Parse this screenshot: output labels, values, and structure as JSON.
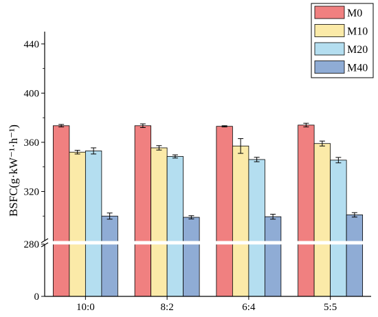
{
  "chart_data": {
    "type": "bar",
    "ylabel": "BSFC(g·kW⁻¹·h⁻¹)",
    "xlabel": "",
    "categories": [
      "10:0",
      "8:2",
      "6:4",
      "5:5"
    ],
    "y_axis": {
      "broken": true,
      "lower_segment": [
        0,
        280
      ],
      "upper_segment": [
        280,
        450
      ],
      "ticks": [
        0,
        280,
        320,
        360,
        400,
        440
      ]
    },
    "series": [
      {
        "name": "M0",
        "color": "#f08080",
        "values": [
          373.5,
          373.5,
          373,
          374
        ],
        "errors": [
          1,
          1.5,
          0.5,
          1.5
        ]
      },
      {
        "name": "M10",
        "color": "#fbeaa8",
        "values": [
          352,
          355.5,
          357,
          359
        ],
        "errors": [
          1.5,
          1.8,
          6,
          2
        ]
      },
      {
        "name": "M20",
        "color": "#b4def0",
        "values": [
          353,
          348.5,
          346,
          345.5
        ],
        "errors": [
          2.5,
          1.3,
          1.8,
          2.2
        ]
      },
      {
        "name": "M40",
        "color": "#8facd5",
        "values": [
          300,
          299,
          299.5,
          301
        ],
        "errors": [
          2.5,
          1.3,
          2,
          1.8
        ]
      }
    ],
    "legend_position": "top-right",
    "grid": false
  }
}
